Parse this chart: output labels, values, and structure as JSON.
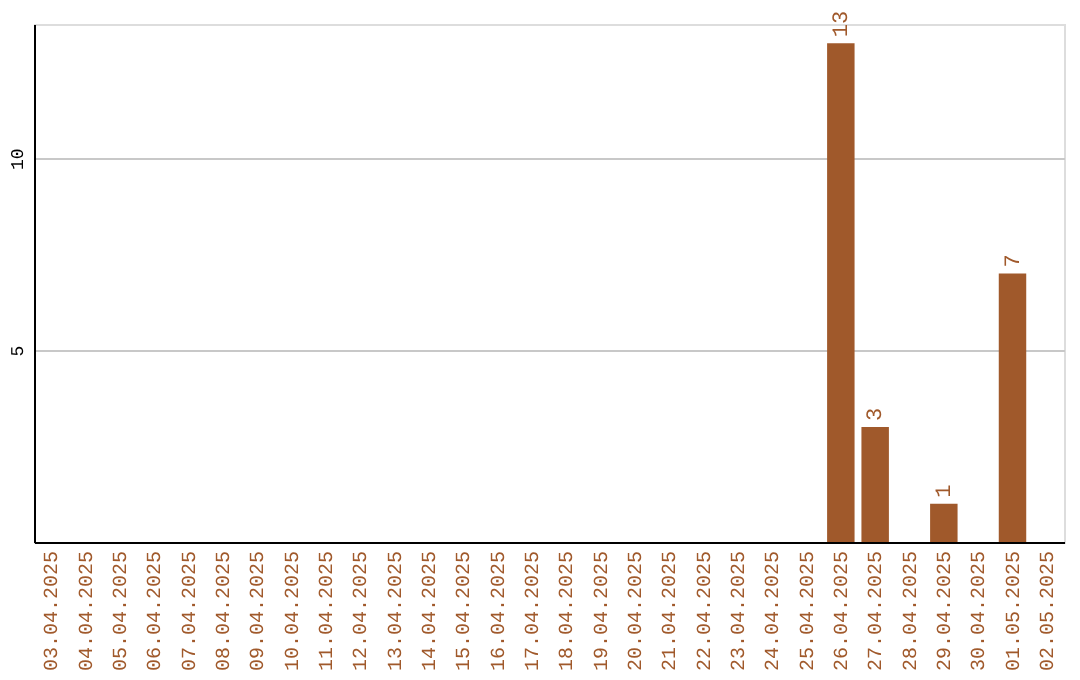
{
  "chart_data": {
    "type": "bar",
    "categories": [
      "03.04.2025",
      "04.04.2025",
      "05.04.2025",
      "06.04.2025",
      "07.04.2025",
      "08.04.2025",
      "09.04.2025",
      "10.04.2025",
      "11.04.2025",
      "12.04.2025",
      "13.04.2025",
      "14.04.2025",
      "15.04.2025",
      "16.04.2025",
      "17.04.2025",
      "18.04.2025",
      "19.04.2025",
      "20.04.2025",
      "21.04.2025",
      "22.04.2025",
      "23.04.2025",
      "24.04.2025",
      "25.04.2025",
      "26.04.2025",
      "27.04.2025",
      "28.04.2025",
      "29.04.2025",
      "30.04.2025",
      "01.05.2025",
      "02.05.2025"
    ],
    "values": [
      0,
      0,
      0,
      0,
      0,
      0,
      0,
      0,
      0,
      0,
      0,
      0,
      0,
      0,
      0,
      0,
      0,
      0,
      0,
      0,
      0,
      0,
      0,
      13,
      3,
      0,
      1,
      0,
      7,
      0
    ],
    "value_labels": [
      null,
      null,
      null,
      null,
      null,
      null,
      null,
      null,
      null,
      null,
      null,
      null,
      null,
      null,
      null,
      null,
      null,
      null,
      null,
      null,
      null,
      null,
      null,
      "13",
      "3",
      null,
      "1",
      null,
      "7",
      null
    ],
    "color": "#a0592b",
    "ylim": [
      0,
      13.5
    ],
    "yticks": [
      5,
      10
    ],
    "grid": "y"
  }
}
